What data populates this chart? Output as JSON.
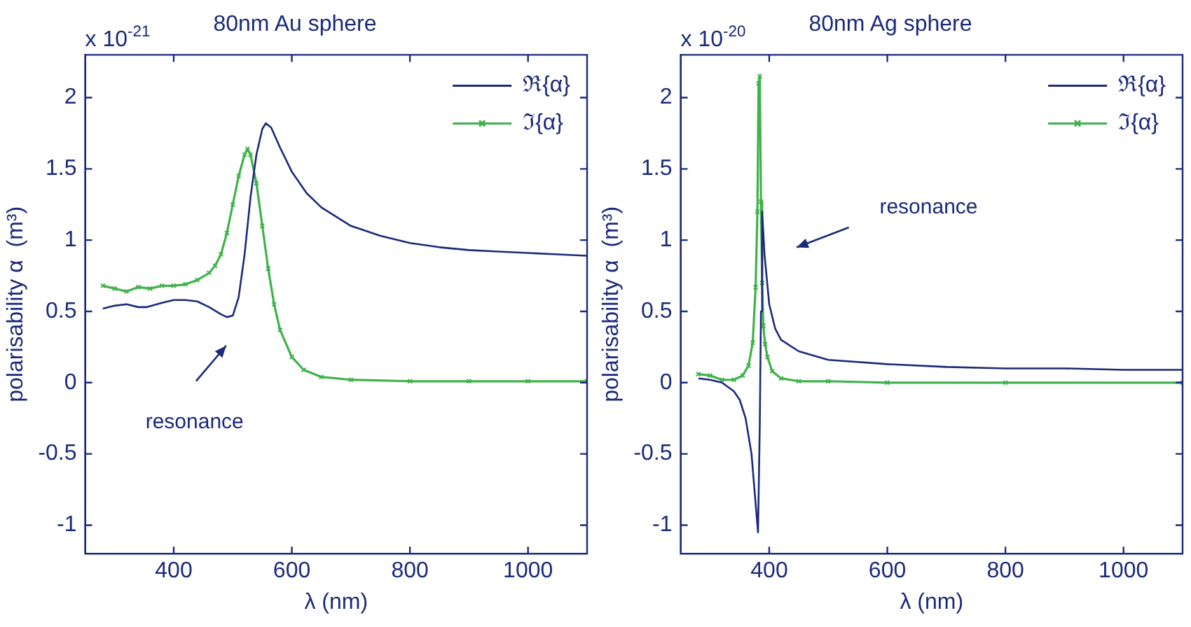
{
  "chart_data": [
    {
      "type": "line",
      "title": "80nm Au sphere",
      "xlabel": "λ (nm)",
      "ylabel": "polarisability α  (m³)",
      "xlim": [
        250,
        1100
      ],
      "ylim": [
        -1.2,
        2.3
      ],
      "xticks": [
        400,
        600,
        800,
        1000
      ],
      "yticks": [
        -1,
        -0.5,
        0,
        0.5,
        1,
        1.5,
        2
      ],
      "grid": false,
      "legend": "top right",
      "annotations": [
        "x 10$^{-21}$",
        "resonance"
      ],
      "series": [
        {
          "name": "ℜ{α}",
          "color": "#1b2a7a",
          "marker": "none",
          "x": [
            280,
            300,
            320,
            340,
            355,
            380,
            400,
            420,
            440,
            460,
            480,
            490,
            500,
            510,
            520,
            530,
            540,
            550,
            556,
            565,
            580,
            600,
            625,
            650,
            700,
            750,
            800,
            850,
            900,
            950,
            1000,
            1050,
            1100
          ],
          "values": [
            0.52,
            0.54,
            0.55,
            0.53,
            0.53,
            0.56,
            0.58,
            0.58,
            0.57,
            0.53,
            0.48,
            0.46,
            0.47,
            0.6,
            0.9,
            1.3,
            1.6,
            1.78,
            1.82,
            1.79,
            1.65,
            1.48,
            1.33,
            1.23,
            1.1,
            1.03,
            0.98,
            0.95,
            0.93,
            0.92,
            0.91,
            0.9,
            0.89
          ]
        },
        {
          "name": "ℑ{α}",
          "color": "#3fb24a",
          "marker": "cross",
          "x": [
            280,
            300,
            320,
            340,
            360,
            380,
            400,
            420,
            440,
            460,
            470,
            480,
            490,
            500,
            510,
            520,
            525,
            530,
            540,
            550,
            560,
            570,
            580,
            600,
            620,
            650,
            700,
            800,
            900,
            1000,
            1100
          ],
          "values": [
            0.68,
            0.66,
            0.64,
            0.67,
            0.66,
            0.68,
            0.68,
            0.69,
            0.72,
            0.77,
            0.82,
            0.9,
            1.05,
            1.25,
            1.45,
            1.6,
            1.64,
            1.6,
            1.4,
            1.1,
            0.8,
            0.55,
            0.37,
            0.18,
            0.09,
            0.04,
            0.02,
            0.01,
            0.01,
            0.01,
            0.01
          ]
        }
      ]
    },
    {
      "type": "line",
      "title": "80nm Ag sphere",
      "xlabel": "λ (nm)",
      "ylabel": "polarisability α  (m³)",
      "xlim": [
        250,
        1100
      ],
      "ylim": [
        -1.2,
        2.3
      ],
      "xticks": [
        400,
        600,
        800,
        1000
      ],
      "yticks": [
        -1,
        -0.5,
        0,
        0.5,
        1,
        1.5,
        2
      ],
      "grid": false,
      "legend": "top right",
      "annotations": [
        "x 10$^{-20}$",
        "resonance"
      ],
      "series": [
        {
          "name": "ℜ{α}",
          "color": "#1b2a7a",
          "marker": "none",
          "x": [
            280,
            300,
            320,
            340,
            350,
            360,
            370,
            378,
            381,
            384,
            386,
            388,
            392,
            400,
            410,
            420,
            450,
            500,
            600,
            700,
            800,
            900,
            1000,
            1100
          ],
          "values": [
            0.03,
            0.02,
            0.0,
            -0.06,
            -0.12,
            -0.25,
            -0.5,
            -0.9,
            -1.05,
            -0.3,
            0.5,
            1.2,
            0.9,
            0.55,
            0.38,
            0.3,
            0.22,
            0.16,
            0.13,
            0.11,
            0.1,
            0.1,
            0.09,
            0.09
          ]
        },
        {
          "name": "ℑ{α}",
          "color": "#3fb24a",
          "marker": "cross",
          "x": [
            280,
            300,
            320,
            340,
            355,
            365,
            372,
            377,
            380,
            382,
            384,
            386,
            388,
            390,
            393,
            397,
            405,
            420,
            450,
            500,
            600,
            800,
            1100
          ],
          "values": [
            0.06,
            0.05,
            0.02,
            0.02,
            0.05,
            0.12,
            0.28,
            0.67,
            1.2,
            2.1,
            2.15,
            1.27,
            0.7,
            0.4,
            0.27,
            0.18,
            0.08,
            0.03,
            0.01,
            0.01,
            0,
            0,
            0
          ]
        }
      ]
    }
  ]
}
